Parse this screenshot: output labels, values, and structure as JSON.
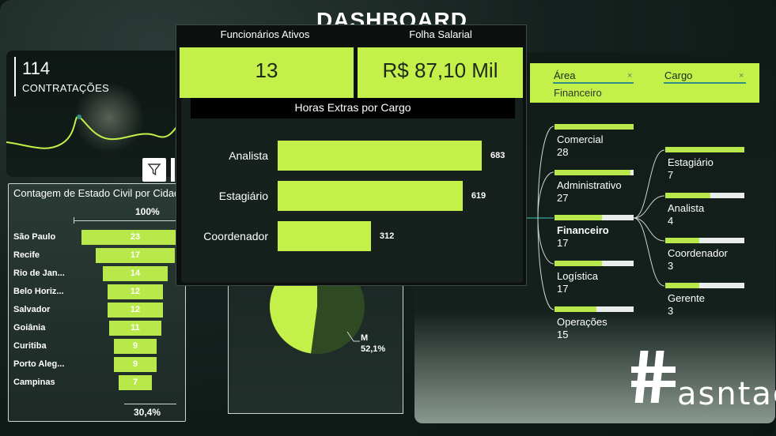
{
  "dashboard": {
    "title": "DASHBOARD RH"
  },
  "kpi": {
    "value": "114",
    "label": "CONTRATAÇÕES"
  },
  "funnel": {
    "title": "Contagem de Estado Civil por Cidade",
    "top_pct": "100%",
    "bottom_pct": "30,4%",
    "rows": [
      {
        "city": "São Paulo",
        "value": 23
      },
      {
        "city": "Recife",
        "value": 17
      },
      {
        "city": "Rio de Jan...",
        "value": 14
      },
      {
        "city": "Belo Horiz...",
        "value": 12
      },
      {
        "city": "Salvador",
        "value": 12
      },
      {
        "city": "Goiânia",
        "value": 11
      },
      {
        "city": "Curitiba",
        "value": 9
      },
      {
        "city": "Porto Aleg...",
        "value": 9
      },
      {
        "city": "Campinas",
        "value": 7
      }
    ]
  },
  "pie": {
    "m_label": "M",
    "m_pct": "52,1%",
    "m_fraction": 0.521,
    "colors": {
      "m": "#2f4a22",
      "f": "#c4f04a"
    }
  },
  "slicers": {
    "area": {
      "label": "Área",
      "value": "Financeiro",
      "clear": "×"
    },
    "cargo": {
      "label": "Cargo",
      "clear": "×"
    }
  },
  "tree": {
    "areas": [
      {
        "name": "Comercial",
        "count": "28",
        "fill": 1.0
      },
      {
        "name": "Administrativo",
        "count": "27",
        "fill": 0.96
      },
      {
        "name": "Financeiro",
        "count": "17",
        "fill": 0.6,
        "selected": true
      },
      {
        "name": "Logística",
        "count": "17",
        "fill": 0.6
      },
      {
        "name": "Operações",
        "count": "15",
        "fill": 0.53
      }
    ],
    "cargos": [
      {
        "name": "Estagiário",
        "count": "7",
        "fill": 1.0
      },
      {
        "name": "Analista",
        "count": "4",
        "fill": 0.57
      },
      {
        "name": "Coordenador",
        "count": "3",
        "fill": 0.43
      },
      {
        "name": "Gerente",
        "count": "3",
        "fill": 0.43
      }
    ]
  },
  "logo": {
    "text": "asntag"
  },
  "popup": {
    "active_label": "Funcionários Ativos",
    "active_value": "13",
    "payroll_label": "Folha Salarial",
    "payroll_value": "R$ 87,10 Mil",
    "chart_title": "Horas Extras por Cargo"
  },
  "chart_data": {
    "type": "bar",
    "title": "Horas Extras por Cargo",
    "categories": [
      "Analista",
      "Estagiário",
      "Coordenador"
    ],
    "values": [
      683,
      619,
      312
    ],
    "labels": [
      "683",
      "619",
      "312"
    ],
    "orientation": "horizontal",
    "color": "#c4f04a"
  },
  "colors": {
    "accent": "#c4f04a",
    "panel": "#0e1613"
  }
}
